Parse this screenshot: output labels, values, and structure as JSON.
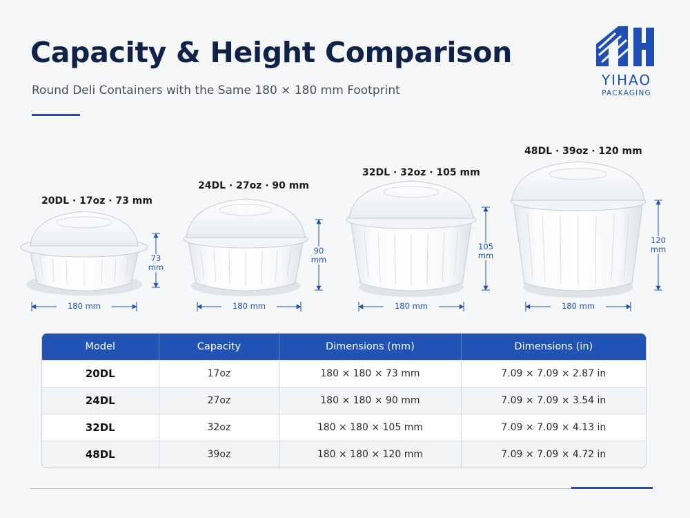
{
  "header": {
    "title": "Capacity & Height Comparison",
    "subtitle": "Round Deli Containers with the Same 180 × 180 mm Footprint"
  },
  "brand": {
    "name": "YIHAO",
    "tagline": "PACKAGING",
    "color": "#1f4fb5"
  },
  "containers": [
    {
      "label": "20DL · 17oz · 73 mm",
      "width_label": "180 mm",
      "height_label": [
        "73",
        "mm"
      ],
      "height_mm": 73
    },
    {
      "label": "24DL · 27oz · 90 mm",
      "width_label": "180 mm",
      "height_label": [
        "90",
        "mm"
      ],
      "height_mm": 90
    },
    {
      "label": "32DL · 32oz · 105 mm",
      "width_label": "180 mm",
      "height_label": [
        "105",
        "mm"
      ],
      "height_mm": 105
    },
    {
      "label": "48DL · 39oz · 120 mm",
      "width_label": "180 mm",
      "height_label": [
        "120",
        "mm"
      ],
      "height_mm": 120
    }
  ],
  "table": {
    "headers": [
      "Model",
      "Capacity",
      "Dimensions (mm)",
      "Dimensions (in)"
    ],
    "rows": [
      [
        "20DL",
        "17oz",
        "180 × 180 × 73 mm",
        "7.09 × 7.09 × 2.87 in"
      ],
      [
        "24DL",
        "27oz",
        "180 × 180 × 90 mm",
        "7.09 × 7.09 × 3.54 in"
      ],
      [
        "32DL",
        "32oz",
        "180 × 180 × 105 mm",
        "7.09 × 7.09 × 4.13 in"
      ],
      [
        "48DL",
        "39oz",
        "180 × 180 × 120 mm",
        "7.09 × 7.09 × 4.72 in"
      ]
    ],
    "header_color": "#2153b5"
  }
}
